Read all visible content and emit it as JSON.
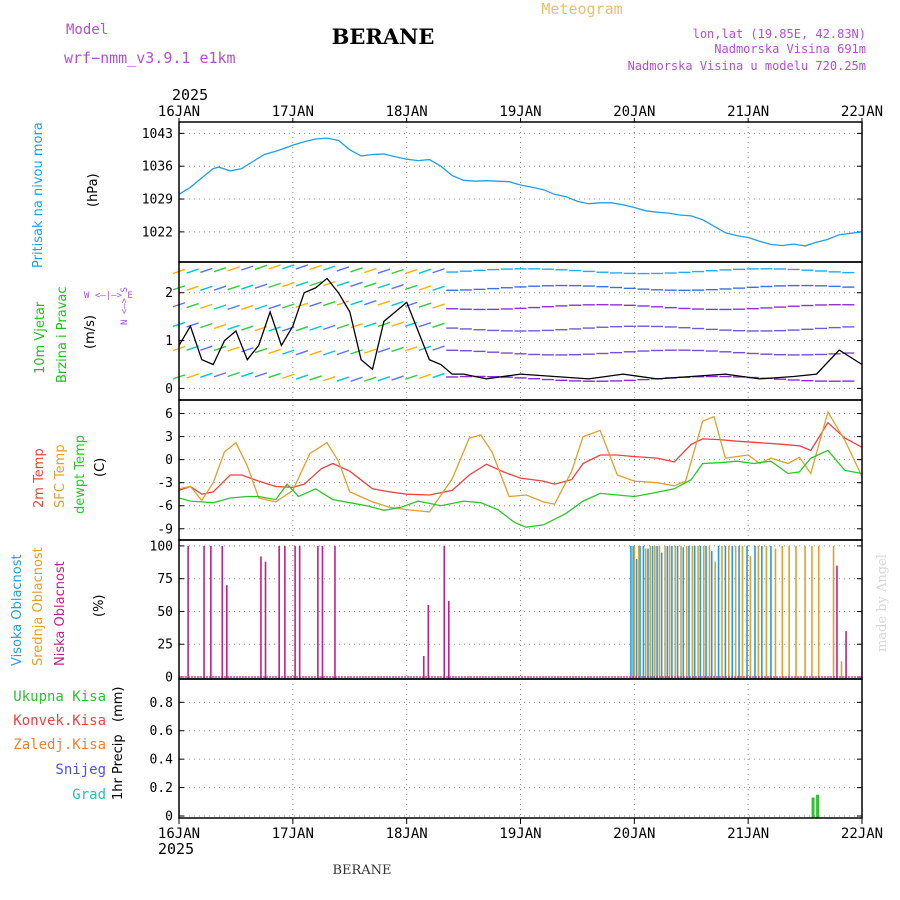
{
  "header": {
    "model_label": "Model",
    "model_name": "wrf−nmm_v3.9.1  e1km",
    "station": "BERANE",
    "product": "Meteogram",
    "lonlat": "lon,lat (19.85E, 42.83N)",
    "altitude": "Nadmorska Visina 691m",
    "model_altitude": "Nadmorska Visina u modelu 720.25m",
    "top_year": "2025",
    "bottom_year": "2025",
    "footer_station": "BERANE",
    "credit": "made by Angel"
  },
  "colors": {
    "pressure": "#1ea0e6",
    "wind_label": "#1fbf1f",
    "wind_compass": "#a050e0",
    "temp2m": "#f04040",
    "sfc_temp": "#e0a030",
    "dewpt": "#28c828",
    "high_cloud": "#1e9ee6",
    "mid_cloud": "#e0a030",
    "low_cloud": "#c0208a",
    "total_precip": "#30c030",
    "conv_precip": "#f04040",
    "frozen_precip": "#f08030",
    "snow": "#5050e0",
    "hail": "#20c0c0",
    "title": "#000000",
    "header_purple": "#b050d0",
    "meteogram": "#e8c070"
  },
  "chart_data": [
    {
      "type": "line",
      "name": "pressure-panel",
      "ylabel_main": "Pritisak na nivou mora",
      "ylabel_unit": "(hPa)",
      "ylim": [
        1016,
        1045
      ],
      "yticks": [
        "1022",
        "1029",
        "1036",
        "1043"
      ],
      "ytick_values": [
        1022,
        1029,
        1036,
        1043
      ],
      "xlim": [
        0,
        6
      ],
      "xticks": [
        "16JAN",
        "17JAN",
        "18JAN",
        "19JAN",
        "20JAN",
        "21JAN",
        "22JAN"
      ],
      "grid": true,
      "series": [
        {
          "color": "#1ea0e6",
          "x": [
            0,
            0.1,
            0.2,
            0.3,
            0.35,
            0.45,
            0.55,
            0.65,
            0.75,
            0.85,
            0.95,
            1.0,
            1.1,
            1.2,
            1.3,
            1.4,
            1.5,
            1.6,
            1.7,
            1.8,
            1.9,
            2.0,
            2.1,
            2.2,
            2.3,
            2.4,
            2.5,
            2.6,
            2.7,
            2.8,
            2.9,
            3.0,
            3.1,
            3.2,
            3.3,
            3.4,
            3.5,
            3.6,
            3.7,
            3.8,
            3.9,
            4.0,
            4.1,
            4.2,
            4.3,
            4.4,
            4.5,
            4.6,
            4.7,
            4.8,
            4.9,
            5.0,
            5.1,
            5.2,
            5.3,
            5.4,
            5.5,
            5.6,
            5.7,
            5.8,
            5.9,
            6.0
          ],
          "values": [
            1030,
            1031.5,
            1033.5,
            1035.5,
            1035.8,
            1035,
            1035.5,
            1037,
            1038.5,
            1039.2,
            1040,
            1040.5,
            1041.2,
            1041.8,
            1042,
            1041.5,
            1039.5,
            1038.2,
            1038.5,
            1038.6,
            1038,
            1037.5,
            1037.2,
            1037.4,
            1036,
            1034,
            1033,
            1032.8,
            1032.9,
            1032.8,
            1032.7,
            1032,
            1031.5,
            1031,
            1030,
            1029.5,
            1028.5,
            1028,
            1028.2,
            1028.2,
            1027.8,
            1027.2,
            1026.5,
            1026.2,
            1026,
            1025.6,
            1025.4,
            1024.6,
            1023.2,
            1021.8,
            1021.2,
            1020.8,
            1020,
            1019.3,
            1019.1,
            1019.4,
            1019.0,
            1019.8,
            1020.4,
            1021.4,
            1021.7,
            1022
          ]
        }
      ]
    },
    {
      "type": "line",
      "name": "wind-panel",
      "ylabel_main": "10m Vjetar",
      "ylabel_main2": "Brzina i Pravac",
      "ylabel_unit": "(m/s)",
      "compass_ns": "N <—> S",
      "compass_we": "W <—|—> E",
      "ylim": [
        -0.2,
        2.6
      ],
      "yticks": [
        "0",
        "1",
        "2"
      ],
      "ytick_values": [
        0,
        1,
        2
      ],
      "xlim": [
        0,
        6
      ],
      "grid": true,
      "series": [
        {
          "name": "speed",
          "color": "#000000",
          "x": [
            0,
            0.1,
            0.2,
            0.3,
            0.4,
            0.5,
            0.6,
            0.7,
            0.8,
            0.9,
            1.0,
            1.1,
            1.2,
            1.3,
            1.4,
            1.5,
            1.6,
            1.7,
            1.8,
            1.9,
            2.0,
            2.1,
            2.2,
            2.3,
            2.4,
            2.5,
            2.7,
            3.0,
            3.3,
            3.6,
            3.9,
            4.2,
            4.5,
            4.8,
            5.1,
            5.4,
            5.6,
            5.8,
            6.0
          ],
          "values": [
            0.9,
            1.3,
            0.6,
            0.5,
            1.0,
            1.2,
            0.6,
            0.9,
            1.6,
            0.9,
            1.3,
            2.0,
            2.1,
            2.3,
            2.0,
            1.6,
            0.6,
            0.4,
            1.4,
            1.6,
            1.8,
            1.2,
            0.6,
            0.5,
            0.3,
            0.3,
            0.2,
            0.3,
            0.25,
            0.2,
            0.3,
            0.2,
            0.25,
            0.3,
            0.2,
            0.25,
            0.3,
            0.8,
            0.5
          ]
        }
      ]
    },
    {
      "type": "line",
      "name": "temperature-panel",
      "ylabel_main": "2m Temp",
      "ylabel_main2": "SFC Temp",
      "ylabel_main3": "dewpt Temp",
      "ylabel_unit": "(C)",
      "ylim": [
        -10.2,
        7.5
      ],
      "yticks": [
        "-9",
        "-6",
        "-3",
        "0",
        "3",
        "6"
      ],
      "ytick_values": [
        -9,
        -6,
        -3,
        0,
        3,
        6
      ],
      "xlim": [
        0,
        6
      ],
      "grid": true,
      "series": [
        {
          "name": "2m",
          "color": "#f04040",
          "x": [
            0,
            0.1,
            0.2,
            0.3,
            0.45,
            0.55,
            0.7,
            0.85,
            1.0,
            1.1,
            1.25,
            1.35,
            1.5,
            1.7,
            1.85,
            2.0,
            2.2,
            2.4,
            2.55,
            2.7,
            2.85,
            3.0,
            3.2,
            3.3,
            3.45,
            3.55,
            3.7,
            3.85,
            4.0,
            4.2,
            4.35,
            4.5,
            4.6,
            4.75,
            4.9,
            5.1,
            5.3,
            5.45,
            5.55,
            5.7,
            5.85,
            6.0
          ],
          "values": [
            -4,
            -3.5,
            -4.5,
            -4.2,
            -2,
            -2.0,
            -2.8,
            -3.5,
            -3.6,
            -3.2,
            -1.2,
            -0.5,
            -1.5,
            -3.8,
            -4.2,
            -4.5,
            -4.6,
            -4.0,
            -2.0,
            -0.6,
            -1.6,
            -2.4,
            -2.8,
            -3.2,
            -2.6,
            -0.5,
            0.6,
            0.6,
            0.4,
            0.2,
            -0.3,
            2.0,
            2.7,
            2.6,
            2.4,
            2.2,
            2.0,
            1.8,
            1.2,
            4.8,
            2.8,
            1.6
          ]
        },
        {
          "name": "sfc",
          "color": "#e0a030",
          "x": [
            0,
            0.1,
            0.2,
            0.3,
            0.4,
            0.5,
            0.6,
            0.7,
            0.85,
            1.0,
            1.15,
            1.3,
            1.4,
            1.5,
            1.7,
            1.85,
            2.0,
            2.2,
            2.4,
            2.55,
            2.65,
            2.75,
            2.9,
            3.05,
            3.2,
            3.3,
            3.45,
            3.55,
            3.7,
            3.85,
            4.0,
            4.2,
            4.35,
            4.45,
            4.6,
            4.7,
            4.8,
            5.0,
            5.1,
            5.2,
            5.35,
            5.45,
            5.55,
            5.7,
            5.85,
            6.0
          ],
          "values": [
            -3.8,
            -3.5,
            -5.3,
            -3.0,
            1.0,
            2.2,
            -0.8,
            -5.0,
            -5.5,
            -4.0,
            0.8,
            2.2,
            -0.2,
            -4.2,
            -5.5,
            -6.2,
            -6.5,
            -6.8,
            -2.5,
            2.8,
            3.2,
            1.0,
            -4.8,
            -4.6,
            -5.5,
            -5.8,
            -1.5,
            3.0,
            3.8,
            -2.0,
            -2.8,
            -3.0,
            -3.4,
            -2.8,
            5.0,
            5.6,
            0.2,
            0.6,
            -0.5,
            0.2,
            -0.5,
            0.3,
            -1.8,
            6.2,
            2.5,
            -2.2
          ]
        },
        {
          "name": "dewpt",
          "color": "#28c828",
          "x": [
            0,
            0.1,
            0.2,
            0.3,
            0.45,
            0.6,
            0.7,
            0.85,
            0.95,
            1.05,
            1.2,
            1.35,
            1.5,
            1.65,
            1.8,
            1.95,
            2.1,
            2.3,
            2.5,
            2.65,
            2.8,
            2.95,
            3.05,
            3.2,
            3.4,
            3.55,
            3.7,
            3.85,
            4.0,
            4.15,
            4.35,
            4.5,
            4.6,
            4.75,
            4.9,
            5.05,
            5.2,
            5.35,
            5.45,
            5.55,
            5.7,
            5.85,
            6.0
          ],
          "values": [
            -5.0,
            -5.4,
            -5.5,
            -5.6,
            -5.0,
            -4.8,
            -4.8,
            -5.2,
            -3.2,
            -4.8,
            -3.8,
            -5.2,
            -5.6,
            -6.0,
            -6.6,
            -6.2,
            -5.4,
            -6.0,
            -5.4,
            -5.6,
            -6.5,
            -8.2,
            -8.8,
            -8.5,
            -7.0,
            -5.4,
            -4.4,
            -4.6,
            -4.8,
            -4.4,
            -3.8,
            -2.6,
            -0.5,
            -0.4,
            -0.2,
            -0.5,
            -0.2,
            -1.8,
            -1.6,
            0.2,
            1.2,
            -1.4,
            -1.8
          ]
        }
      ]
    },
    {
      "type": "bar",
      "name": "cloud-panel",
      "ylabel_main": "Visoka Oblacnost",
      "ylabel_main2": "Srednja Oblacnost",
      "ylabel_main3": "Niska Oblacnost",
      "ylabel_unit": "(%)",
      "ylim": [
        0,
        103
      ],
      "yticks": [
        "0",
        "25",
        "50",
        "75",
        "100"
      ],
      "ytick_values": [
        0,
        25,
        50,
        75,
        100
      ],
      "xlim": [
        0,
        6
      ],
      "grid": true,
      "series": [
        {
          "name": "low",
          "color": "#c0208a",
          "x": [
            0.08,
            0.22,
            0.28,
            0.38,
            0.42,
            0.72,
            0.76,
            0.88,
            0.93,
            1.02,
            1.06,
            1.22,
            1.26,
            1.37,
            2.15,
            2.19,
            2.33,
            2.37,
            5.78,
            5.86
          ],
          "values": [
            100,
            100,
            100,
            100,
            70,
            92,
            88,
            100,
            100,
            100,
            100,
            100,
            100,
            100,
            16,
            55,
            100,
            58,
            85,
            35
          ]
        },
        {
          "name": "high",
          "color": "#1e9ee6",
          "x": [
            3.97,
            3.99,
            4.02,
            4.05,
            4.08,
            4.12,
            4.16,
            4.2,
            4.24,
            4.29,
            4.33,
            4.38,
            4.43,
            4.48,
            4.53,
            4.58,
            4.63,
            4.68,
            4.74,
            4.8,
            4.86,
            4.92,
            4.99,
            5.06,
            5.12,
            5.2
          ],
          "values": [
            100,
            100,
            90,
            100,
            100,
            98,
            100,
            100,
            95,
            100,
            100,
            100,
            99,
            100,
            100,
            100,
            100,
            96,
            100,
            100,
            100,
            100,
            100,
            100,
            100,
            100
          ]
        },
        {
          "name": "mid",
          "color": "#e0a030",
          "x": [
            4.0,
            4.04,
            4.1,
            4.14,
            4.18,
            4.22,
            4.27,
            4.31,
            4.36,
            4.41,
            4.46,
            4.51,
            4.56,
            4.61,
            4.66,
            4.71,
            4.77,
            4.83,
            4.89,
            4.95,
            5.02,
            5.09,
            5.16,
            5.24,
            5.3,
            5.36,
            5.42,
            5.5,
            5.56,
            5.62,
            5.75,
            5.82
          ],
          "values": [
            100,
            100,
            98,
            100,
            100,
            100,
            100,
            100,
            100,
            100,
            100,
            100,
            100,
            100,
            100,
            88,
            100,
            100,
            100,
            100,
            92,
            100,
            100,
            98,
            100,
            100,
            100,
            100,
            100,
            100,
            100,
            12
          ]
        }
      ]
    },
    {
      "type": "bar",
      "name": "precip-panel",
      "ylabel_main": "1hr Precip",
      "ylabel_unit": "(mm)",
      "legend": [
        "Ukupna Kisa",
        "Konvek.Kisa",
        "Zaledj.Kisa",
        "Snijeg",
        "Grad"
      ],
      "ylim": [
        0,
        0.95
      ],
      "yticks": [
        "0",
        "0.2",
        "0.4",
        "0.6",
        "0.8"
      ],
      "ytick_values": [
        0,
        0.2,
        0.4,
        0.6,
        0.8
      ],
      "xlim": [
        0,
        6
      ],
      "xticks": [
        "16JAN",
        "17JAN",
        "18JAN",
        "19JAN",
        "20JAN",
        "21JAN",
        "22JAN"
      ],
      "grid": true,
      "series": [
        {
          "name": "total",
          "color": "#30c030",
          "x": [
            5.57,
            5.61
          ],
          "values": [
            0.13,
            0.15
          ]
        }
      ]
    }
  ]
}
